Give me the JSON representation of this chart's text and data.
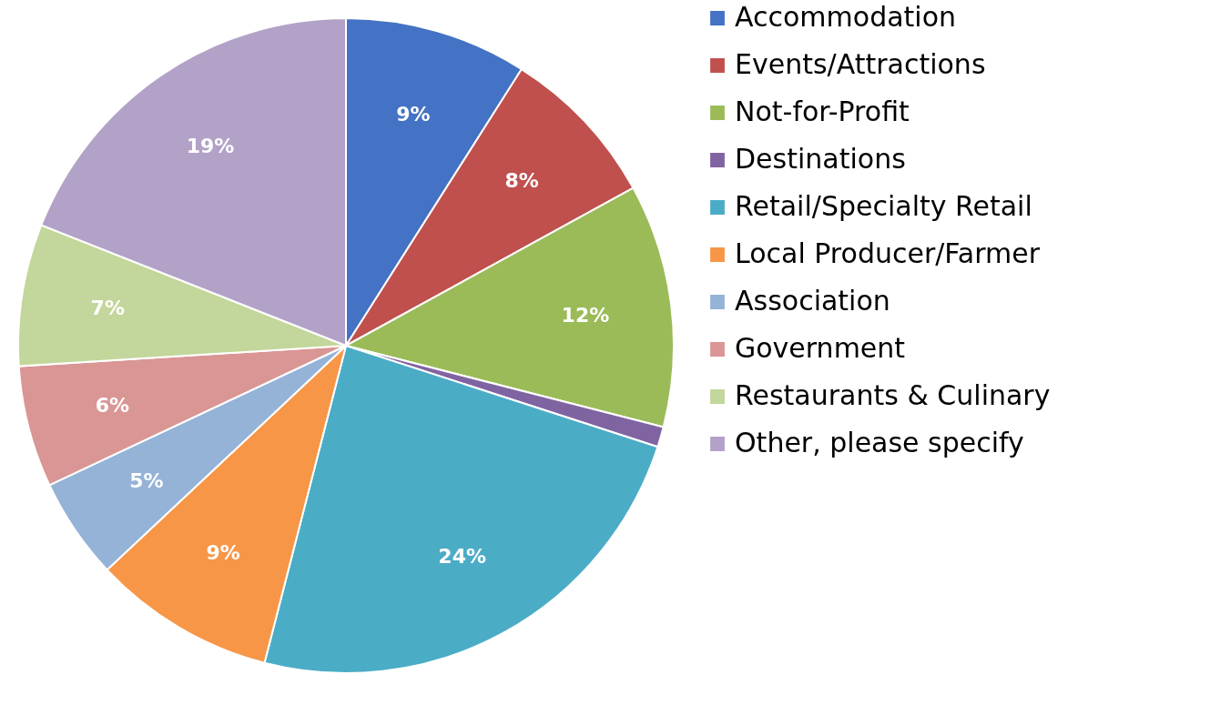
{
  "chart_data": {
    "type": "pie",
    "categories": [
      "Accommodation",
      "Events/Attractions",
      "Not-for-Profit",
      "Destinations",
      "Retail/Specialty Retail",
      "Local Producer/Farmer",
      "Association",
      "Government",
      "Restaurants & Culinary",
      "Other, please specify"
    ],
    "values": [
      9,
      8,
      12,
      1,
      24,
      9,
      5,
      6,
      7,
      19
    ],
    "value_labels": [
      "9%",
      "8%",
      "12%",
      null,
      "24%",
      "9%",
      "5%",
      "6%",
      "7%",
      "19%"
    ],
    "colors": [
      "#4472c4",
      "#c0504d",
      "#9bbb59",
      "#8064a2",
      "#4bacc6",
      "#f79646",
      "#95b3d7",
      "#d99694",
      "#c3d69b",
      "#b2a2c7"
    ],
    "legend": "right"
  }
}
